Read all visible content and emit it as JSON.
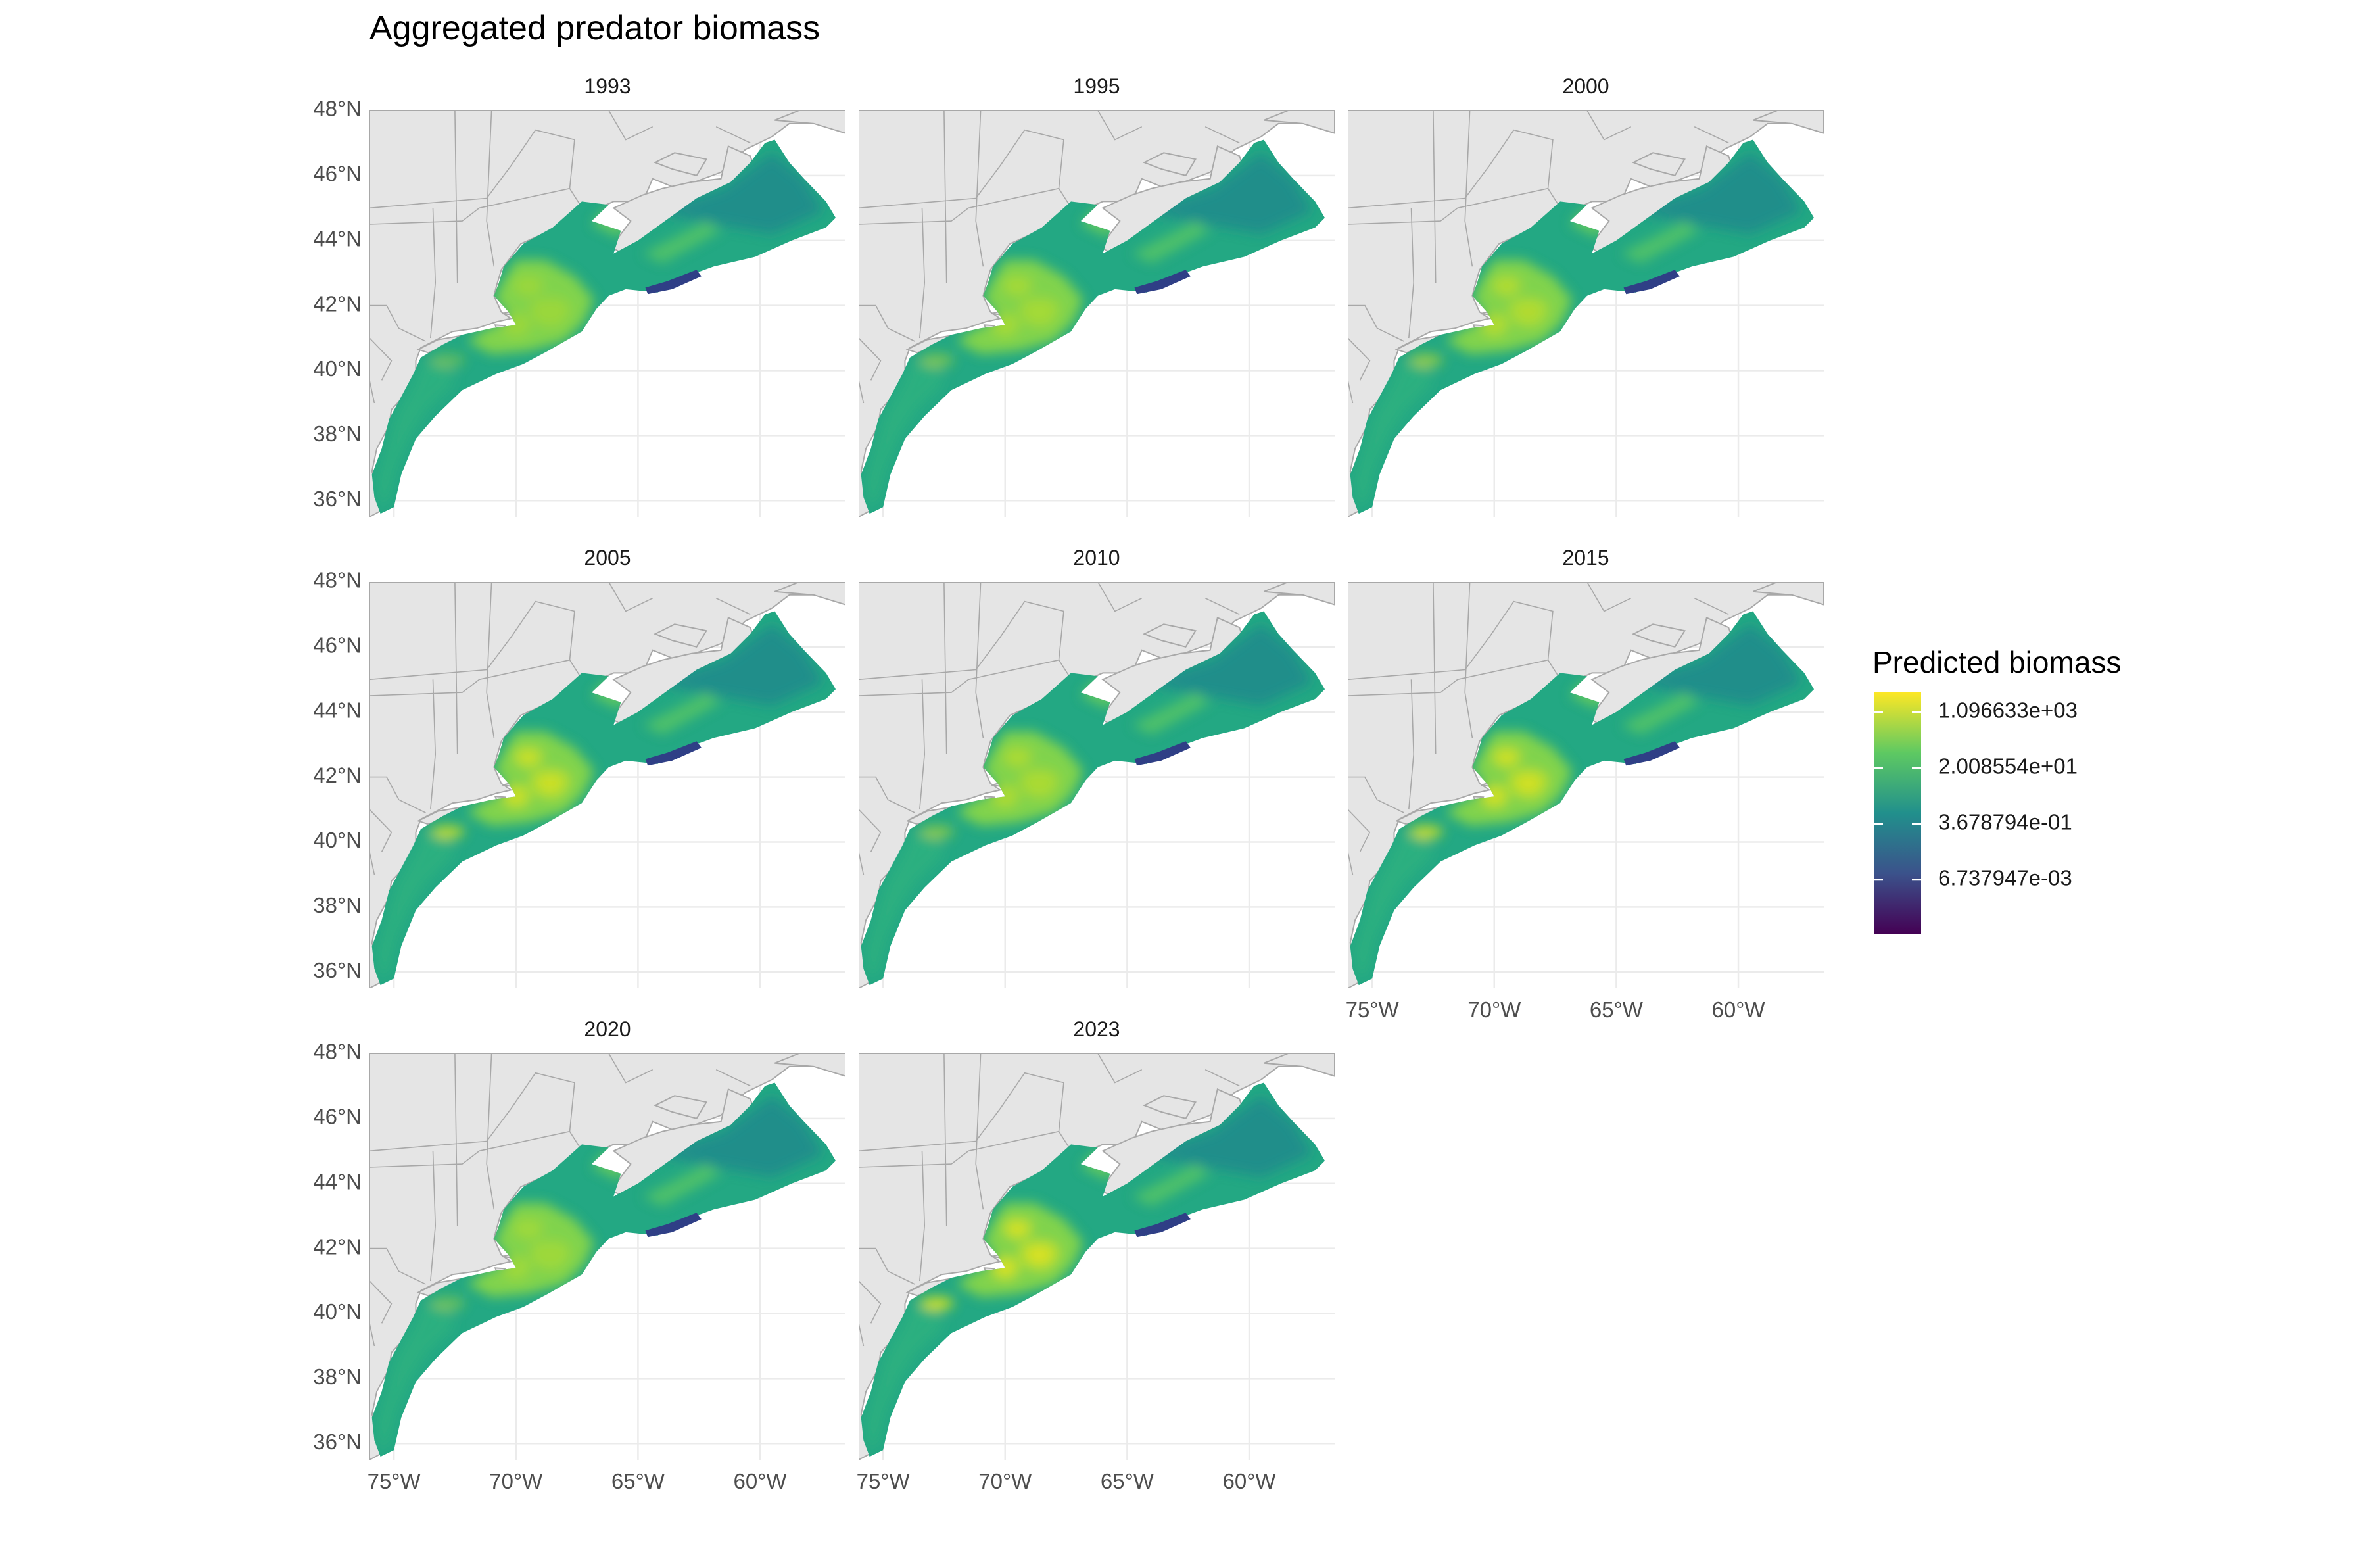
{
  "title": "Aggregated predator biomass",
  "map": {
    "lon_range": [
      -76,
      -56.5
    ],
    "lat_range": [
      35.5,
      48
    ],
    "x_ticks": [
      {
        "lon": -75,
        "label": "75°W"
      },
      {
        "lon": -70,
        "label": "70°W"
      },
      {
        "lon": -65,
        "label": "65°W"
      },
      {
        "lon": -60,
        "label": "60°W"
      }
    ],
    "y_ticks": [
      {
        "lat": 36,
        "label": "36°N"
      },
      {
        "lat": 38,
        "label": "38°N"
      },
      {
        "lat": 40,
        "label": "40°N"
      },
      {
        "lat": 42,
        "label": "42°N"
      },
      {
        "lat": 44,
        "label": "44°N"
      },
      {
        "lat": 46,
        "label": "46°N"
      },
      {
        "lat": 48,
        "label": "48°N"
      }
    ]
  },
  "panels": [
    {
      "year": "1993",
      "label": "1993",
      "hotspot": 0.35
    },
    {
      "year": "1995",
      "label": "1995",
      "hotspot": 0.45
    },
    {
      "year": "2000",
      "label": "2000",
      "hotspot": 0.55
    },
    {
      "year": "2005",
      "label": "2005",
      "hotspot": 0.75
    },
    {
      "year": "2010",
      "label": "2010",
      "hotspot": 0.5
    },
    {
      "year": "2015",
      "label": "2015",
      "hotspot": 0.8
    },
    {
      "year": "2020",
      "label": "2020",
      "hotspot": 0.4
    },
    {
      "year": "2023",
      "label": "2023",
      "hotspot": 0.85
    }
  ],
  "legend": {
    "title": "Predicted biomass",
    "labels": [
      "1.096633e+03",
      "2.008554e+01",
      "3.678794e-01",
      "6.737947e-03"
    ],
    "colors": [
      "#440154",
      "#3b528b",
      "#21908c",
      "#5ec962",
      "#fde725"
    ]
  }
}
